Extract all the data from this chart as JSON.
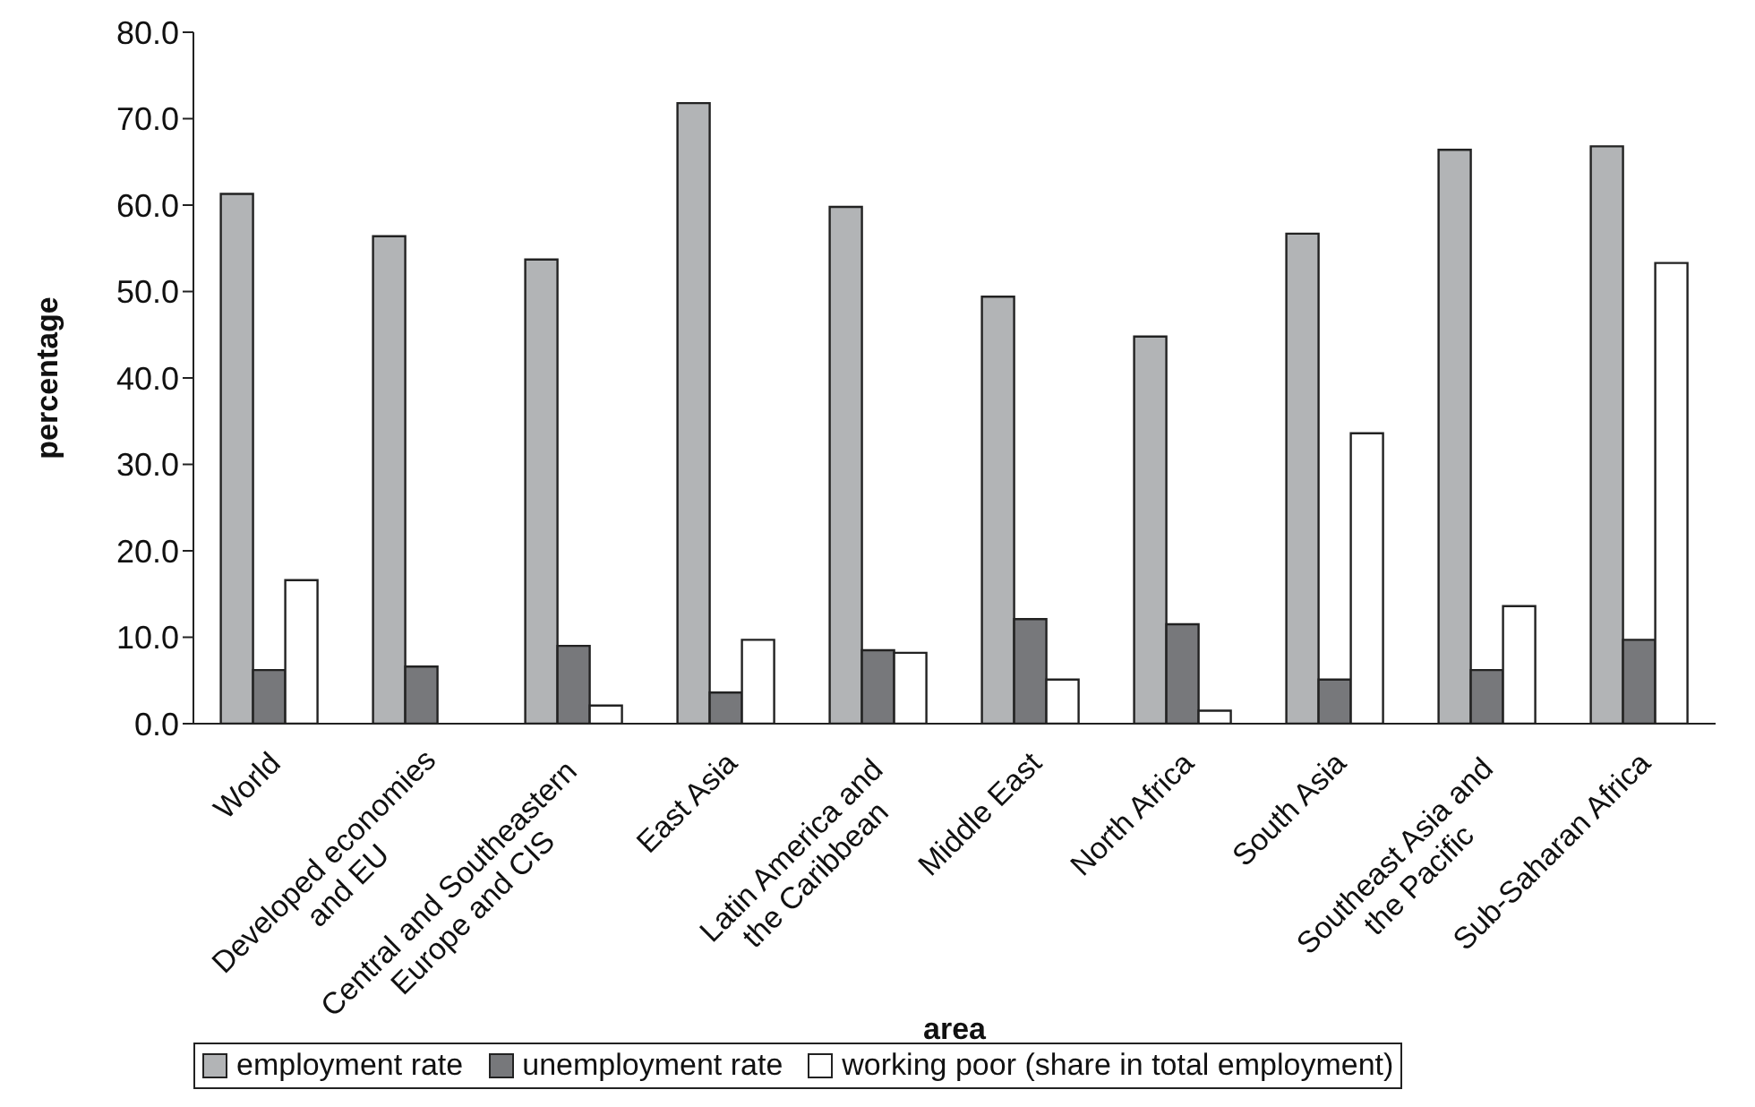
{
  "chart_data": {
    "type": "bar",
    "xlabel": "area",
    "ylabel": "percentage",
    "categories": [
      "World",
      "Developed economies\nand EU",
      "Central and Southeastern\nEurope and CIS",
      "East Asia",
      "Latin America and\nthe Caribbean",
      "Middle East",
      "North Africa",
      "South Asia",
      "Southeast Asia and\nthe Pacific",
      "Sub-Saharan Africa"
    ],
    "series": [
      {
        "name": "employment rate",
        "color": "#b2b4b6",
        "values": [
          61.3,
          56.4,
          53.7,
          71.8,
          59.8,
          49.4,
          44.8,
          56.7,
          66.4,
          66.8
        ]
      },
      {
        "name": "unemployment rate",
        "color": "#77787b",
        "values": [
          6.2,
          6.6,
          9.0,
          3.6,
          8.5,
          12.1,
          11.5,
          5.1,
          6.2,
          9.7
        ]
      },
      {
        "name": "working poor (share in total employment)",
        "color": "#ffffff",
        "values": [
          16.6,
          null,
          2.1,
          9.7,
          8.2,
          5.1,
          1.5,
          33.6,
          13.6,
          53.3
        ]
      }
    ],
    "ylim": [
      0,
      80
    ],
    "yticks": [
      {
        "value": 0,
        "label": "0.0"
      },
      {
        "value": 10,
        "label": "10.0"
      },
      {
        "value": 20,
        "label": "20.0"
      },
      {
        "value": 30,
        "label": "30.0"
      },
      {
        "value": 40,
        "label": "40.0"
      },
      {
        "value": 50,
        "label": "50.0"
      },
      {
        "value": 60,
        "label": "60.0"
      },
      {
        "value": 70,
        "label": "70.0"
      },
      {
        "value": 80,
        "label": "80.0"
      }
    ],
    "grid": false,
    "legend": "bottom"
  }
}
